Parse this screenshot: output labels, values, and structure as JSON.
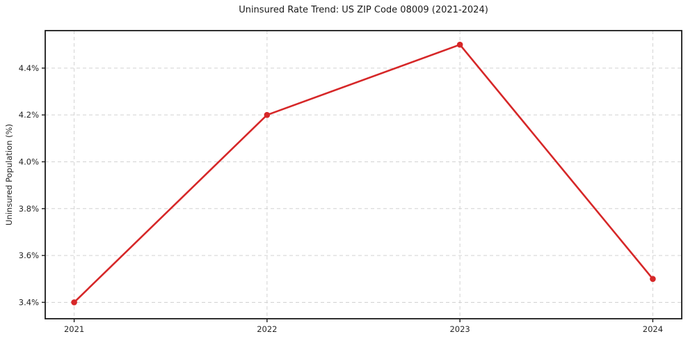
{
  "page": {
    "background": "#ffffff"
  },
  "chart_data": {
    "type": "line",
    "title": "Uninsured Rate Trend: US ZIP Code 08009 (2021-2024)",
    "xlabel": "",
    "ylabel": "Uninsured Population (%)",
    "x": [
      2021,
      2022,
      2023,
      2024
    ],
    "values": [
      3.4,
      4.2,
      4.5,
      3.5
    ],
    "x_tick_labels": [
      "2021",
      "2022",
      "2023",
      "2024"
    ],
    "y_ticks": [
      3.4,
      3.6,
      3.8,
      4.0,
      4.2,
      4.4
    ],
    "y_tick_labels": [
      "3.4%",
      "3.6%",
      "3.8%",
      "4.0%",
      "4.2%",
      "4.4%"
    ],
    "xlim": [
      2020.85,
      2024.15
    ],
    "ylim": [
      3.33,
      4.56
    ],
    "grid": true,
    "grid_style": "dashed",
    "legend_position": "none",
    "line_color": "#d62728",
    "marker": "circle"
  },
  "colors": {
    "grid": "#d2d2d2",
    "spine": "#1a1a1a",
    "tick": "#1a1a1a",
    "tick_label": "#262626",
    "title": "#1a1a1a"
  }
}
